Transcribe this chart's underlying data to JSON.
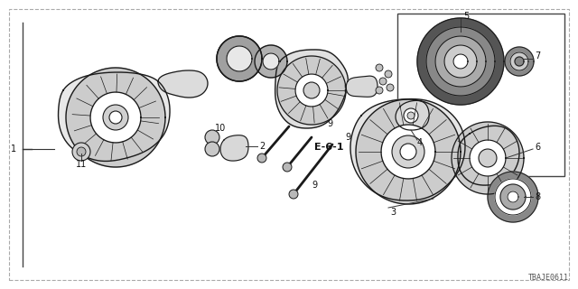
{
  "bg_color": "#ffffff",
  "line_color": "#1a1a1a",
  "gray_fill": "#e0e0e0",
  "dark_gray": "#888888",
  "diagram_code": "TBAJE0611",
  "figsize": [
    6.4,
    3.2
  ],
  "dpi": 100,
  "border_dashed_color": "#999999",
  "border_solid_color": "#444444",
  "label_fontsize": 7,
  "code_fontsize": 6,
  "bold_fontsize": 8
}
